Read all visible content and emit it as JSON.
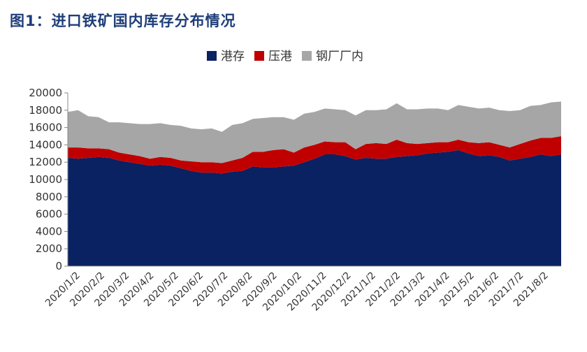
{
  "header": {
    "title": "图1：进口铁矿国内库存分布情况"
  },
  "chart_data": {
    "type": "area",
    "stacked": true,
    "title": "",
    "xlabel": "",
    "ylabel": "",
    "ylim": [
      0,
      20000
    ],
    "yticks": [
      0,
      2000,
      4000,
      6000,
      8000,
      10000,
      12000,
      14000,
      16000,
      18000,
      20000
    ],
    "x_tick_labels": [
      "2020/1/2",
      "2020/2/2",
      "2020/3/2",
      "2020/4/2",
      "2020/5/2",
      "2020/6/2",
      "2020/7/2",
      "2020/8/2",
      "2020/9/2",
      "2020/10/2",
      "2020/11/2",
      "2020/12/2",
      "2021/1/2",
      "2021/2/2",
      "2021/3/2",
      "2021/4/2",
      "2021/5/2",
      "2021/6/2",
      "2021/7/2",
      "2021/8/2"
    ],
    "legend_position": "top",
    "series": [
      {
        "name": "港存",
        "color": "#0a2162",
        "values": [
          12500,
          12400,
          12500,
          12600,
          12500,
          12200,
          12000,
          11800,
          11600,
          11700,
          11600,
          11300,
          11000,
          10800,
          10800,
          10700,
          10900,
          11000,
          11500,
          11400,
          11400,
          11500,
          11600,
          12000,
          12400,
          12900,
          12900,
          12700,
          12300,
          12500,
          12400,
          12400,
          12600,
          12700,
          12800,
          13000,
          13100,
          13200,
          13400,
          13000,
          12700,
          12800,
          12600,
          12200,
          12400,
          12600,
          12900,
          12700,
          12900
        ]
      },
      {
        "name": "压港",
        "color": "#c00000",
        "values": [
          1200,
          1300,
          1100,
          1000,
          1000,
          900,
          900,
          900,
          800,
          900,
          900,
          900,
          1100,
          1200,
          1200,
          1200,
          1300,
          1500,
          1700,
          1800,
          2000,
          2000,
          1500,
          1700,
          1600,
          1500,
          1400,
          1600,
          1200,
          1600,
          1800,
          1700,
          2000,
          1500,
          1300,
          1200,
          1200,
          1100,
          1200,
          1300,
          1500,
          1500,
          1400,
          1500,
          1700,
          1900,
          1900,
          2100,
          2100
        ]
      },
      {
        "name": "钢厂厂内",
        "color": "#a6a6a6",
        "values": [
          4100,
          4300,
          3700,
          3600,
          3100,
          3500,
          3600,
          3700,
          4000,
          3900,
          3800,
          4000,
          3800,
          3800,
          3900,
          3600,
          4100,
          4000,
          3800,
          3900,
          3800,
          3700,
          3800,
          3900,
          3800,
          3800,
          3800,
          3700,
          3900,
          3900,
          3800,
          4000,
          4200,
          3900,
          4000,
          4000,
          3900,
          3700,
          4000,
          4100,
          4000,
          4000,
          4000,
          4200,
          3900,
          4000,
          3800,
          4100,
          4000
        ]
      }
    ]
  }
}
